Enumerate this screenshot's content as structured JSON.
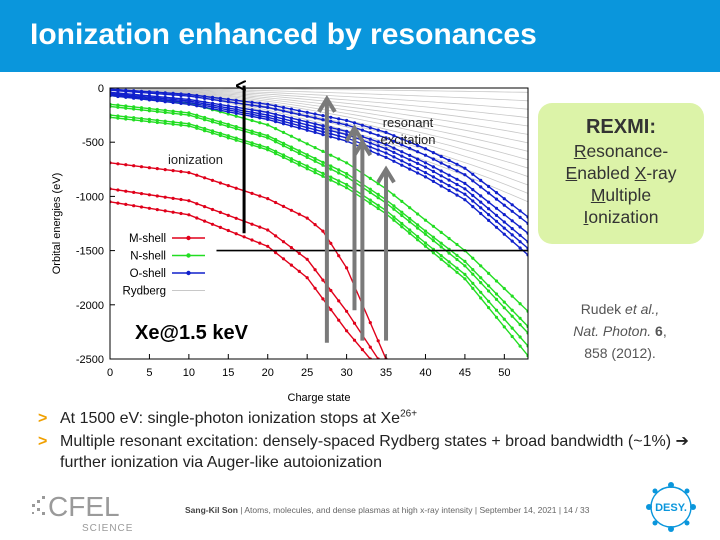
{
  "slide": {
    "title": "Ionization enhanced by resonances",
    "bullets": [
      {
        "pre": "At 1500 eV: single-photon ionization stops at Xe",
        "sup": "26+"
      },
      {
        "text": "Multiple resonant excitation: densely-spaced Rydberg states + broad bandwidth (~1%) ➔ further ionization via Auger-like autoionization"
      }
    ],
    "rexmi": {
      "title": "REXMI",
      "lines": [
        {
          "u": "R",
          "rest": "esonance-"
        },
        {
          "u": "E",
          "rest": "nabled "
        },
        {
          "u": "X",
          "rest": "-ray"
        },
        {
          "u": "M",
          "rest": "ultiple"
        },
        {
          "u": "I",
          "rest": "onization"
        }
      ]
    },
    "reference": {
      "author": "Rudek",
      "etal": "et al.,",
      "journal": "Nat. Photon.",
      "volume": "6",
      "pages": "858 (2012)."
    },
    "footer": {
      "author": "Sang-Kil Son",
      "rest": "  |  Atoms, molecules, and dense plasmas at high x-ray intensity  |  September 14, 2021  |  14 / 33"
    },
    "logos": {
      "left": "CFEL",
      "left_sub": "SCIENCE",
      "right": "DESY."
    },
    "colors": {
      "title_bar": "#0a96dc",
      "bullet": "#f0a000",
      "rexmi_bg": "#dcf3a8",
      "m_shell": "#e0001a",
      "n_shell": "#22dd22",
      "o_shell": "#1020cc",
      "rydberg": "#c8c8c8",
      "arrow": "#7a7a7a"
    }
  },
  "chart_data": {
    "type": "line",
    "xlabel": "Charge state",
    "ylabel": "Orbital energies (eV)",
    "xlim": [
      0,
      53
    ],
    "ylim": [
      -2500,
      0
    ],
    "x_ticks": [
      0,
      5,
      10,
      15,
      20,
      25,
      30,
      35,
      40,
      45,
      50
    ],
    "y_ticks": [
      0,
      -500,
      -1000,
      -1500,
      -2000,
      -2500
    ],
    "grid": false,
    "legend": {
      "position": "lower-left",
      "entries": [
        "M-shell",
        "N-shell",
        "O-shell",
        "Rydberg"
      ]
    },
    "annotations": {
      "sample": "Xe@1.5 keV",
      "ionization": "ionization",
      "resonant": "resonant\nexcitation"
    },
    "photon_energy_line": -1500,
    "series": [
      {
        "name": "M-shell",
        "type": "M",
        "lines": [
          {
            "x": [
              0,
              10,
              20,
              25,
              27,
              30,
              35
            ],
            "y": [
              -690,
              -780,
              -1020,
              -1200,
              -1320,
              -1660,
              -2500
            ]
          },
          {
            "x": [
              0,
              10,
              20,
              25,
              30,
              34
            ],
            "y": [
              -930,
              -1040,
              -1310,
              -1580,
              -2060,
              -2500
            ]
          },
          {
            "x": [
              0,
              10,
              20,
              25,
              30,
              33
            ],
            "y": [
              -1050,
              -1170,
              -1460,
              -1750,
              -2240,
              -2500
            ]
          }
        ]
      },
      {
        "name": "N-shell",
        "type": "N",
        "lines": [
          {
            "x": [
              0,
              10,
              20,
              30,
              35,
              40,
              45,
              53
            ],
            "y": [
              -70,
              -140,
              -340,
              -690,
              -930,
              -1220,
              -1500,
              -2060
            ]
          },
          {
            "x": [
              0,
              10,
              20,
              30,
              35,
              40,
              45,
              53
            ],
            "y": [
              -150,
              -230,
              -440,
              -790,
              -1030,
              -1320,
              -1600,
              -2200
            ]
          },
          {
            "x": [
              0,
              10,
              20,
              30,
              35,
              40,
              45,
              53
            ],
            "y": [
              -170,
              -250,
              -460,
              -820,
              -1060,
              -1350,
              -1640,
              -2260
            ]
          },
          {
            "x": [
              0,
              10,
              20,
              30,
              35,
              40,
              45,
              53
            ],
            "y": [
              -250,
              -330,
              -550,
              -890,
              -1130,
              -1430,
              -1720,
              -2380
            ]
          },
          {
            "x": [
              0,
              10,
              20,
              30,
              35,
              40,
              45,
              53
            ],
            "y": [
              -270,
              -350,
              -570,
              -920,
              -1160,
              -1460,
              -1760,
              -2470
            ]
          }
        ]
      },
      {
        "name": "O-shell",
        "type": "O",
        "lines": [
          {
            "x": [
              0,
              10,
              20,
              30,
              35,
              40,
              45,
              53
            ],
            "y": [
              -10,
              -60,
              -150,
              -300,
              -410,
              -560,
              -740,
              -1190
            ]
          },
          {
            "x": [
              0,
              10,
              20,
              30,
              35,
              40,
              45,
              53
            ],
            "y": [
              -20,
              -75,
              -180,
              -340,
              -460,
              -620,
              -800,
              -1250
            ]
          },
          {
            "x": [
              0,
              10,
              20,
              30,
              35,
              40,
              45,
              53
            ],
            "y": [
              -40,
              -105,
              -225,
              -400,
              -520,
              -690,
              -880,
              -1340
            ]
          },
          {
            "x": [
              0,
              10,
              20,
              30,
              35,
              40,
              45,
              53
            ],
            "y": [
              -50,
              -120,
              -250,
              -430,
              -560,
              -730,
              -930,
              -1420
            ]
          },
          {
            "x": [
              0,
              10,
              20,
              30,
              35,
              40,
              45,
              53
            ],
            "y": [
              -60,
              -135,
              -270,
              -460,
              -600,
              -780,
              -980,
              -1480
            ]
          },
          {
            "x": [
              0,
              10,
              20,
              30,
              35,
              40,
              45,
              53
            ],
            "y": [
              -70,
              -150,
              -290,
              -490,
              -640,
              -820,
              -1030,
              -1540
            ]
          }
        ]
      },
      {
        "name": "Rydberg",
        "type": "R",
        "count": 14,
        "end_min": -40,
        "end_max": -1050,
        "x_end": 53
      }
    ],
    "arrows": [
      {
        "label": "ionization",
        "x": 17,
        "from": -1340,
        "to": 40,
        "color": "black"
      },
      {
        "x": 27.5,
        "from": -2350,
        "to": -100,
        "color": "gray"
      },
      {
        "x": 31,
        "from": -2050,
        "to": -370,
        "color": "gray"
      },
      {
        "x": 32,
        "from": -2330,
        "to": -500,
        "color": "gray"
      },
      {
        "x": 35,
        "from": -2330,
        "to": -750,
        "color": "gray"
      }
    ]
  }
}
